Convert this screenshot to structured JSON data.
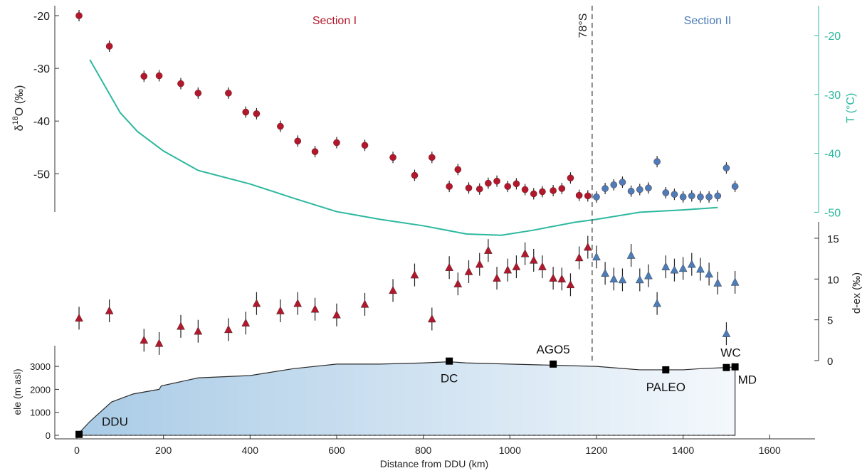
{
  "chart_data": [
    {
      "type": "scatter",
      "panel": "isotope-temperature",
      "ylabel_parts": {
        "delta": "δ",
        "sup": "18",
        "rest": "O (‰)"
      },
      "right_ylabel": "T (°C)",
      "ylim": [
        -55,
        -20
      ],
      "right_ylim": [
        -57,
        -25
      ],
      "yticks": [
        -50,
        -40,
        -30,
        -20
      ],
      "right_yticks": [
        -50,
        -40,
        -30,
        -20
      ],
      "section_labels": [
        {
          "text": "Section I",
          "x": 550
        },
        {
          "text": "Section II",
          "x": 1480
        }
      ],
      "divider": {
        "x": 1190,
        "label": "78°S"
      },
      "series": [
        {
          "key": "section1",
          "color": "#b2182b",
          "x": [
            5,
            75,
            155,
            190,
            240,
            280,
            350,
            390,
            415,
            470,
            510,
            550,
            600,
            665,
            730,
            780,
            820,
            860,
            880,
            905,
            930,
            950,
            970,
            995,
            1015,
            1035,
            1055,
            1075,
            1100,
            1120,
            1140,
            1160,
            1180
          ],
          "y": [
            -20,
            -25.8,
            -31.5,
            -31.4,
            -32.9,
            -34.7,
            -34.7,
            -38.3,
            -38.6,
            -41,
            -43.8,
            -45.8,
            -44.1,
            -44.6,
            -46.9,
            -50.3,
            -46.9,
            -52.4,
            -49.2,
            -52.7,
            -52.9,
            -51.8,
            -51.4,
            -52.4,
            -51.9,
            -53,
            -53.8,
            -53.4,
            -53.2,
            -52.8,
            -50.8,
            -54.1,
            -54.2
          ]
        },
        {
          "key": "section2",
          "color": "#4d7cb7",
          "x": [
            1200,
            1220,
            1240,
            1260,
            1280,
            1300,
            1320,
            1340,
            1360,
            1380,
            1400,
            1420,
            1440,
            1460,
            1480,
            1500,
            1520
          ],
          "y": [
            -54.4,
            -52.8,
            -52.1,
            -51.6,
            -53.3,
            -53,
            -52.7,
            -47.7,
            -53.6,
            -53.9,
            -54.4,
            -54.2,
            -54.4,
            -54.4,
            -54.2,
            -48.9,
            -52.4
          ]
        },
        {
          "key": "temperature",
          "color": "#2cb89f",
          "axis": "right",
          "x": [
            30,
            100,
            140,
            200,
            280,
            400,
            500,
            600,
            700,
            800,
            900,
            980,
            1050,
            1150,
            1200,
            1300,
            1400,
            1480
          ],
          "y": [
            -24.1,
            -33.1,
            -36.3,
            -39.6,
            -42.9,
            -45.2,
            -47.6,
            -49.9,
            -51.2,
            -52.3,
            -53.7,
            -53.9,
            -53.1,
            -51.7,
            -51.2,
            -50,
            -49.6,
            -49.2
          ]
        }
      ]
    },
    {
      "type": "scatter",
      "panel": "deuterium-excess",
      "ylabel": "d-ex (‰)",
      "ylim": [
        0,
        16
      ],
      "yticks": [
        0,
        5,
        10,
        15
      ],
      "series": [
        {
          "key": "section1",
          "color": "#b2182b",
          "x": [
            5,
            75,
            155,
            190,
            240,
            280,
            350,
            390,
            415,
            470,
            510,
            550,
            600,
            665,
            730,
            780,
            820,
            860,
            880,
            905,
            930,
            950,
            970,
            995,
            1015,
            1035,
            1055,
            1075,
            1100,
            1120,
            1140,
            1160,
            1180
          ],
          "y": [
            5.2,
            6.1,
            2.5,
            2.1,
            4.2,
            3.6,
            3.8,
            4.6,
            7,
            6.1,
            7,
            6.3,
            5.6,
            6.9,
            8.6,
            10.5,
            5.1,
            11.4,
            9.4,
            10.9,
            11.8,
            13.5,
            10.1,
            11.1,
            11.5,
            13.1,
            12.3,
            11.5,
            10.1,
            10,
            9.3,
            12.6,
            13.9
          ]
        },
        {
          "key": "section2",
          "color": "#4d7cb7",
          "x": [
            1200,
            1220,
            1240,
            1260,
            1280,
            1300,
            1320,
            1340,
            1360,
            1380,
            1400,
            1420,
            1440,
            1460,
            1480,
            1500,
            1520
          ],
          "y": [
            12.7,
            10.7,
            10,
            9.9,
            12.9,
            9.9,
            10.4,
            7,
            11.5,
            11.1,
            11.3,
            11.8,
            11.2,
            10.6,
            9.5,
            3.3,
            9.6
          ]
        }
      ]
    },
    {
      "type": "area",
      "panel": "elevation-profile",
      "ylabel": "ele (m asl)",
      "xlabel": "Distance from DDU (km)",
      "xlim": [
        -50,
        1700
      ],
      "ylim": [
        0,
        3800
      ],
      "xticks": [
        0,
        200,
        400,
        600,
        800,
        1000,
        1200,
        1400,
        1600
      ],
      "yticks": [
        0,
        1000,
        2000,
        3000
      ],
      "profile": {
        "x": [
          0,
          30,
          80,
          130,
          190,
          195,
          280,
          400,
          500,
          600,
          700,
          800,
          860,
          900,
          1000,
          1100,
          1200,
          1300,
          1360,
          1400,
          1440,
          1500,
          1520,
          1520
        ],
        "y": [
          0,
          600,
          1450,
          1800,
          2000,
          2150,
          2500,
          2600,
          2900,
          3100,
          3100,
          3150,
          3200,
          3150,
          3100,
          3050,
          3000,
          2850,
          2850,
          2850,
          2900,
          2950,
          2980,
          0
        ]
      },
      "stations": [
        {
          "name": "DDU",
          "x": 5,
          "y": 40
        },
        {
          "name": "DC",
          "x": 860,
          "y": 3230
        },
        {
          "name": "AGO5",
          "x": 1100,
          "y": 3100
        },
        {
          "name": "PALEO",
          "x": 1360,
          "y": 2850
        },
        {
          "name": "WC",
          "x": 1500,
          "y": 2950
        },
        {
          "name": "MD",
          "x": 1520,
          "y": 2980
        }
      ]
    }
  ]
}
